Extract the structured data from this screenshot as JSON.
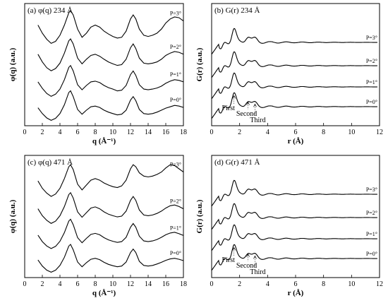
{
  "chart_data": [
    {
      "type": "line",
      "panel": "a",
      "title": "(a) φ(q) 234 Å",
      "xlabel": "q (Å⁻¹)",
      "ylabel": "φ(q) (a.u.)",
      "xlim": [
        0,
        18
      ],
      "xticks": [
        0,
        2,
        4,
        6,
        8,
        10,
        12,
        14,
        16,
        18
      ],
      "series": [
        {
          "name": "P=3°",
          "x": [
            1.5,
            2,
            2.5,
            3,
            3.5,
            4,
            4.5,
            5,
            5.2,
            5.5,
            6,
            6.5,
            7,
            7.5,
            8,
            8.5,
            9,
            9.5,
            10,
            10.5,
            11,
            11.5,
            12,
            12.3,
            12.6,
            13,
            13.5,
            14,
            14.5,
            15,
            15.5,
            16,
            16.5,
            17,
            17.5,
            18
          ],
          "y": [
            0.7,
            0.5,
            0.35,
            0.25,
            0.3,
            0.45,
            0.7,
            1.0,
            1.05,
            0.95,
            0.6,
            0.4,
            0.5,
            0.65,
            0.7,
            0.65,
            0.55,
            0.48,
            0.42,
            0.38,
            0.4,
            0.55,
            0.85,
            0.95,
            0.85,
            0.6,
            0.45,
            0.42,
            0.45,
            0.5,
            0.6,
            0.75,
            0.85,
            0.9,
            0.88,
            0.8
          ]
        },
        {
          "name": "P=2°",
          "x": [
            1.5,
            2,
            2.5,
            3,
            3.5,
            4,
            4.5,
            5,
            5.2,
            5.5,
            6,
            6.5,
            7,
            7.5,
            8,
            8.5,
            9,
            9.5,
            10,
            10.5,
            11,
            11.5,
            12,
            12.3,
            12.6,
            13,
            13.5,
            14,
            14.5,
            15,
            15.5,
            16,
            16.5,
            17,
            17.5,
            18
          ],
          "y": [
            0.65,
            0.45,
            0.3,
            0.22,
            0.28,
            0.42,
            0.68,
            1.0,
            1.05,
            0.92,
            0.55,
            0.4,
            0.52,
            0.62,
            0.65,
            0.6,
            0.52,
            0.45,
            0.4,
            0.36,
            0.38,
            0.52,
            0.82,
            0.92,
            0.8,
            0.55,
            0.42,
            0.4,
            0.42,
            0.45,
            0.52,
            0.62,
            0.68,
            0.72,
            0.7,
            0.65
          ]
        },
        {
          "name": "P=1°",
          "x": [
            1.5,
            2,
            2.5,
            3,
            3.5,
            4,
            4.5,
            5,
            5.2,
            5.5,
            6,
            6.5,
            7,
            7.5,
            8,
            8.5,
            9,
            9.5,
            10,
            10.5,
            11,
            11.5,
            12,
            12.3,
            12.6,
            13,
            13.5,
            14,
            14.5,
            15,
            15.5,
            16,
            16.5,
            17,
            17.5,
            18
          ],
          "y": [
            0.6,
            0.42,
            0.28,
            0.2,
            0.26,
            0.4,
            0.66,
            1.0,
            1.05,
            0.9,
            0.52,
            0.38,
            0.5,
            0.6,
            0.62,
            0.58,
            0.5,
            0.44,
            0.4,
            0.35,
            0.37,
            0.5,
            0.8,
            0.9,
            0.78,
            0.52,
            0.4,
            0.38,
            0.4,
            0.43,
            0.48,
            0.56,
            0.62,
            0.66,
            0.64,
            0.6
          ]
        },
        {
          "name": "P=0°",
          "x": [
            1.5,
            2,
            2.5,
            3,
            3.5,
            4,
            4.5,
            5,
            5.2,
            5.5,
            6,
            6.5,
            7,
            7.5,
            8,
            8.5,
            9,
            9.5,
            10,
            10.5,
            11,
            11.5,
            12,
            12.3,
            12.6,
            13,
            13.5,
            14,
            14.5,
            15,
            15.5,
            16,
            16.5,
            17,
            17.5,
            18
          ],
          "y": [
            0.55,
            0.38,
            0.25,
            0.18,
            0.24,
            0.38,
            0.64,
            1.0,
            1.05,
            0.88,
            0.5,
            0.36,
            0.48,
            0.58,
            0.6,
            0.56,
            0.48,
            0.42,
            0.38,
            0.34,
            0.36,
            0.48,
            0.78,
            0.88,
            0.76,
            0.5,
            0.38,
            0.36,
            0.38,
            0.42,
            0.48,
            0.54,
            0.58,
            0.62,
            0.6,
            0.56
          ]
        }
      ]
    },
    {
      "type": "line",
      "panel": "b",
      "title": "(b) G(r) 234 Å",
      "xlabel": "r (Å)",
      "ylabel": "G(r) (a.u.)",
      "xlim": [
        0,
        12
      ],
      "xticks": [
        0,
        2,
        4,
        6,
        8,
        10,
        12
      ],
      "annotations": [
        {
          "label": "First",
          "x": 1.6
        },
        {
          "label": "Second",
          "x": 2.6
        },
        {
          "label": "Third",
          "x": 3.1
        }
      ],
      "series": [
        {
          "name": "P=3°"
        },
        {
          "name": "P=2°"
        },
        {
          "name": "P=1°"
        },
        {
          "name": "P=0°"
        }
      ]
    },
    {
      "type": "line",
      "panel": "c",
      "title": "(c) φ(q) 471 Å",
      "xlabel": "q (Å⁻¹)",
      "ylabel": "φ(q) (a.u.)",
      "xlim": [
        0,
        18
      ],
      "xticks": [
        0,
        2,
        4,
        6,
        8,
        10,
        12,
        14,
        16,
        18
      ],
      "series": [
        {
          "name": "P=3°",
          "x": [
            1.5,
            2,
            2.5,
            3,
            3.5,
            4,
            4.5,
            5,
            5.2,
            5.5,
            6,
            6.5,
            7,
            7.5,
            8,
            8.5,
            9,
            9.5,
            10,
            10.5,
            11,
            11.5,
            12,
            12.3,
            12.6,
            13,
            13.5,
            14,
            14.5,
            15,
            15.5,
            16,
            16.5,
            17,
            17.5,
            18
          ],
          "y": [
            0.6,
            0.42,
            0.3,
            0.22,
            0.28,
            0.42,
            0.66,
            0.95,
            1.0,
            0.88,
            0.52,
            0.38,
            0.5,
            0.62,
            0.66,
            0.62,
            0.55,
            0.5,
            0.46,
            0.44,
            0.48,
            0.62,
            0.9,
            1.0,
            0.95,
            0.8,
            0.72,
            0.7,
            0.72,
            0.76,
            0.82,
            0.92,
            1.0,
            0.98,
            0.9,
            0.82
          ]
        },
        {
          "name": "P=2°",
          "x": [
            1.5,
            2,
            2.5,
            3,
            3.5,
            4,
            4.5,
            5,
            5.2,
            5.5,
            6,
            6.5,
            7,
            7.5,
            8,
            8.5,
            9,
            9.5,
            10,
            10.5,
            11,
            11.5,
            12,
            12.3,
            12.6,
            13,
            13.5,
            14,
            14.5,
            15,
            15.5,
            16,
            16.5,
            17,
            17.5,
            18
          ],
          "y": [
            0.58,
            0.4,
            0.28,
            0.2,
            0.26,
            0.4,
            0.64,
            0.95,
            1.0,
            0.86,
            0.5,
            0.36,
            0.48,
            0.6,
            0.63,
            0.58,
            0.5,
            0.44,
            0.4,
            0.37,
            0.39,
            0.52,
            0.8,
            0.9,
            0.8,
            0.55,
            0.42,
            0.4,
            0.42,
            0.46,
            0.52,
            0.6,
            0.66,
            0.68,
            0.64,
            0.58
          ]
        },
        {
          "name": "P=1°",
          "x": [
            1.5,
            2,
            2.5,
            3,
            3.5,
            4,
            4.5,
            5,
            5.2,
            5.5,
            6,
            6.5,
            7,
            7.5,
            8,
            8.5,
            9,
            9.5,
            10,
            10.5,
            11,
            11.5,
            12,
            12.3,
            12.6,
            13,
            13.5,
            14,
            14.5,
            15,
            15.5,
            16,
            16.5,
            17,
            17.5,
            18
          ],
          "y": [
            0.56,
            0.38,
            0.26,
            0.19,
            0.25,
            0.39,
            0.63,
            0.95,
            1.0,
            0.85,
            0.49,
            0.35,
            0.47,
            0.58,
            0.61,
            0.57,
            0.49,
            0.43,
            0.39,
            0.36,
            0.38,
            0.5,
            0.78,
            0.88,
            0.78,
            0.53,
            0.4,
            0.38,
            0.4,
            0.44,
            0.5,
            0.57,
            0.62,
            0.64,
            0.6,
            0.55
          ]
        },
        {
          "name": "P=0°",
          "x": [
            1.5,
            2,
            2.5,
            3,
            3.5,
            4,
            4.5,
            5,
            5.2,
            5.5,
            6,
            6.5,
            7,
            7.5,
            8,
            8.5,
            9,
            9.5,
            10,
            10.5,
            11,
            11.5,
            12,
            12.3,
            12.6,
            13,
            13.5,
            14,
            14.5,
            15,
            15.5,
            16,
            16.5,
            17,
            17.5,
            18
          ],
          "y": [
            0.54,
            0.36,
            0.24,
            0.18,
            0.24,
            0.38,
            0.62,
            0.95,
            1.0,
            0.84,
            0.48,
            0.34,
            0.46,
            0.56,
            0.59,
            0.55,
            0.47,
            0.41,
            0.37,
            0.34,
            0.36,
            0.48,
            0.76,
            0.86,
            0.76,
            0.5,
            0.38,
            0.36,
            0.38,
            0.42,
            0.47,
            0.53,
            0.57,
            0.59,
            0.56,
            0.52
          ]
        }
      ]
    },
    {
      "type": "line",
      "panel": "d",
      "title": "(d) G(r) 471 Å",
      "xlabel": "r (Å)",
      "ylabel": "G(r) (a.u.)",
      "xlim": [
        0,
        12
      ],
      "xticks": [
        0,
        2,
        4,
        6,
        8,
        10,
        12
      ],
      "annotations": [
        {
          "label": "First",
          "x": 1.6
        },
        {
          "label": "Second",
          "x": 2.6
        },
        {
          "label": "Third",
          "x": 3.1
        }
      ],
      "series": [
        {
          "name": "P=3°"
        },
        {
          "name": "P=2°"
        },
        {
          "name": "P=1°"
        },
        {
          "name": "P=0°"
        }
      ]
    }
  ]
}
